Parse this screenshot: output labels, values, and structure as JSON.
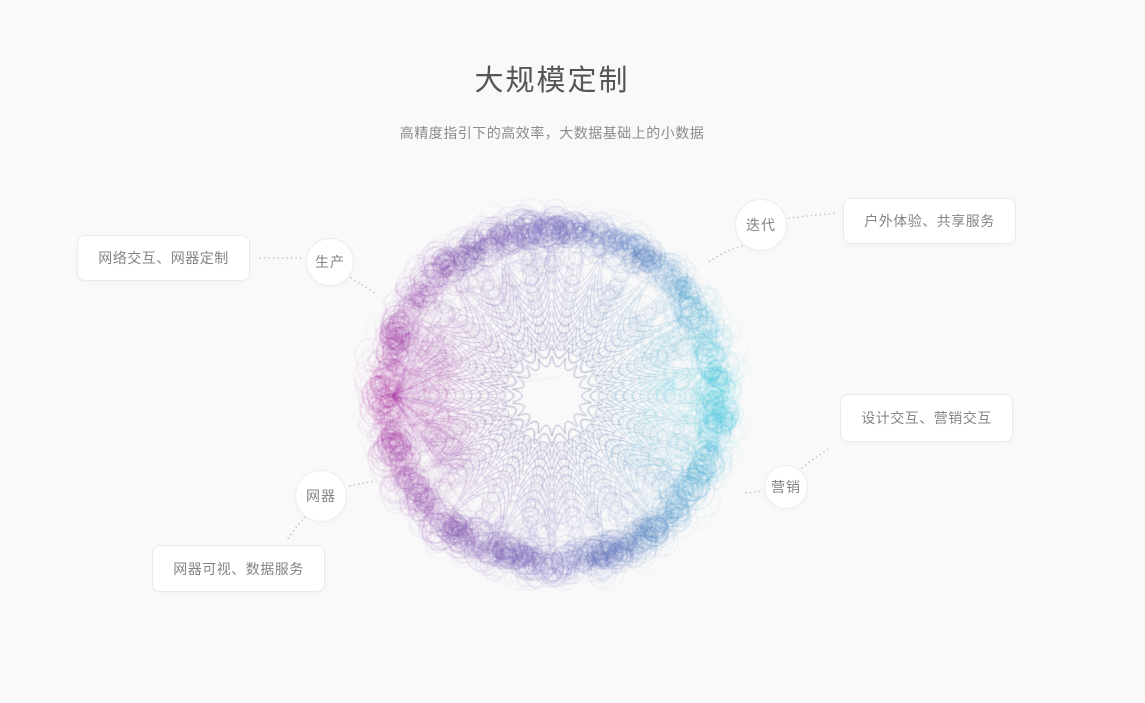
{
  "header": {
    "title": "大规模定制",
    "subtitle": "高精度指引下的高效率，大数据基础上的小数据"
  },
  "diagram": {
    "nodes": [
      {
        "id": "production",
        "label": "生产"
      },
      {
        "id": "iteration",
        "label": "迭代"
      },
      {
        "id": "marketing",
        "label": "营销"
      },
      {
        "id": "device",
        "label": "网器"
      }
    ],
    "cards": [
      {
        "id": "production-card",
        "label": "网络交互、网器定制"
      },
      {
        "id": "iteration-card",
        "label": "户外体验、共享服务"
      },
      {
        "id": "marketing-card",
        "label": "设计交互、营销交互"
      },
      {
        "id": "device-card",
        "label": "网器可视、数据服务"
      }
    ]
  },
  "sphere": {
    "colors": {
      "left": "#b23da6",
      "mid": "#7a63c6",
      "right": "#3ec9de",
      "core": "#484a8a"
    }
  },
  "ui_colors": {
    "background": "#f9f9f9",
    "connector": "#c8c8c8",
    "title_text": "#555555",
    "subtitle_text": "#8b8b8b",
    "label_text": "#848484",
    "card_border": "#eaeaea"
  }
}
